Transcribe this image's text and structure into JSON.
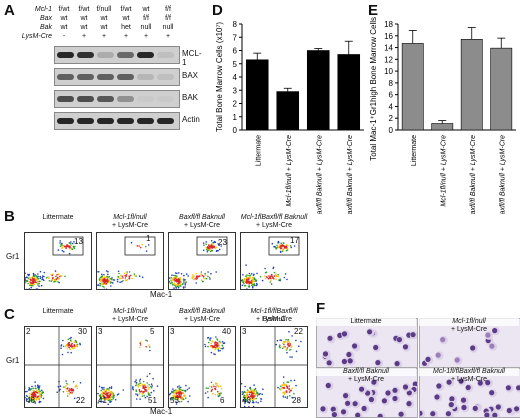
{
  "panels": {
    "A": "A",
    "B": "B",
    "C": "C",
    "D": "D",
    "E": "E",
    "F": "F"
  },
  "panelA": {
    "row_labels": [
      "Mcl-1",
      "Bax",
      "Bak",
      "LysM-Cre"
    ],
    "genotypes": [
      {
        "mcl1": "f/wt",
        "bax": "wt",
        "bak": "wt",
        "cre": "-"
      },
      {
        "mcl1": "f/wt",
        "bax": "wt",
        "bak": "wt",
        "cre": "+"
      },
      {
        "mcl1": "f/null",
        "bax": "wt",
        "bak": "wt",
        "cre": "+"
      },
      {
        "mcl1": "f/wt",
        "bax": "wt",
        "bak": "het",
        "cre": "+"
      },
      {
        "mcl1": "wt",
        "bax": "f/f",
        "bak": "null",
        "cre": "+"
      },
      {
        "mcl1": "f/f",
        "bax": "f/f",
        "bak": "null",
        "cre": "+"
      }
    ],
    "blots": [
      "MCL-1",
      "BAX",
      "BAK",
      "Actin"
    ]
  },
  "panelB": {
    "xlabel": "Mac-1",
    "ylabel": "Gr1",
    "plots": [
      {
        "label_line1": "Littermate",
        "label_line2": "",
        "gate": "13"
      },
      {
        "label_line1": "Mcl-1fl/null",
        "label_line2": "+ LysM-Cre",
        "gate": "1"
      },
      {
        "label_line1": "Baxfl/fl Baknull",
        "label_line2": "+ LysM-Cre",
        "gate": "23"
      },
      {
        "label_line1": "Mcl-1flBaxfl/fl Baknull",
        "label_line2": "+ LysM-Cre",
        "gate": "17"
      }
    ]
  },
  "panelC": {
    "xlabel": "Mac-1",
    "ylabel": "Gr1",
    "plots": [
      {
        "label_line1": "Littermate",
        "label_line2": "",
        "q": [
          "2",
          "30",
          "46",
          "22"
        ]
      },
      {
        "label_line1": "Mcl-1fl/null",
        "label_line2": "+ LysM-Cre",
        "q": [
          "3",
          "5",
          "41",
          "51"
        ]
      },
      {
        "label_line1": "Baxfl/fl Baknull",
        "label_line2": "+ LysM-Cre",
        "q": [
          "3",
          "40",
          "53",
          "6"
        ]
      },
      {
        "label_line1": "Mcl-1fl/flBaxfl/fl Baknull",
        "label_line2": "+ LysM-Cre",
        "q": [
          "3",
          "22",
          "48",
          "28"
        ]
      }
    ]
  },
  "chart_data": [
    {
      "type": "bar",
      "ylabel": "Total Bone Marrow Cells (x10⁷)",
      "ylim": [
        0,
        8
      ],
      "yticks": [
        "0",
        "1",
        "2",
        "3",
        "4",
        "5",
        "6",
        "7",
        "8"
      ],
      "categories": [
        "Littermate",
        "Mcl-1fl/null + LysM-Cre",
        "Baxfl/fl Baknull + LysM-Cre",
        "Mcl-1fl/fl Baxfl/fl Baknull + LysM-Cre"
      ],
      "values": [
        5.3,
        2.9,
        6.0,
        5.7
      ],
      "errors": [
        0.5,
        0.25,
        0.15,
        1.0
      ],
      "bar_color": "#000000"
    },
    {
      "type": "bar",
      "ylabel": "Total Mac-1⁺Gr1high Bone Marrow Cells (x10⁶)",
      "ylim": [
        0,
        18
      ],
      "yticks": [
        "0",
        "2",
        "4",
        "6",
        "8",
        "10",
        "12",
        "14",
        "16",
        "18"
      ],
      "categories": [
        "Littermate",
        "Mcl-1fl/null + LysM-Cre",
        "Baxfl/fl Baknull + LysM-Cre",
        "Mcl-1fl/fl Baxfl/fl Baknull + LysM-Cre"
      ],
      "values": [
        14.7,
        1.1,
        15.4,
        13.9
      ],
      "errors": [
        2.2,
        0.5,
        2.0,
        1.7
      ],
      "bar_color": "#8c8c8c"
    }
  ],
  "panelF": {
    "photos": [
      {
        "line1": "Littermate",
        "line2": ""
      },
      {
        "line1": "Mcl-1fl/null",
        "line2": "+ LysM-Cre"
      },
      {
        "line1": "Baxfl/fl Baknull",
        "line2": "+ LysM-Cre"
      },
      {
        "line1": "Mcl-1fl/flBaxfl/fl Baknull",
        "line2": "+ LysM-Cre"
      }
    ]
  }
}
